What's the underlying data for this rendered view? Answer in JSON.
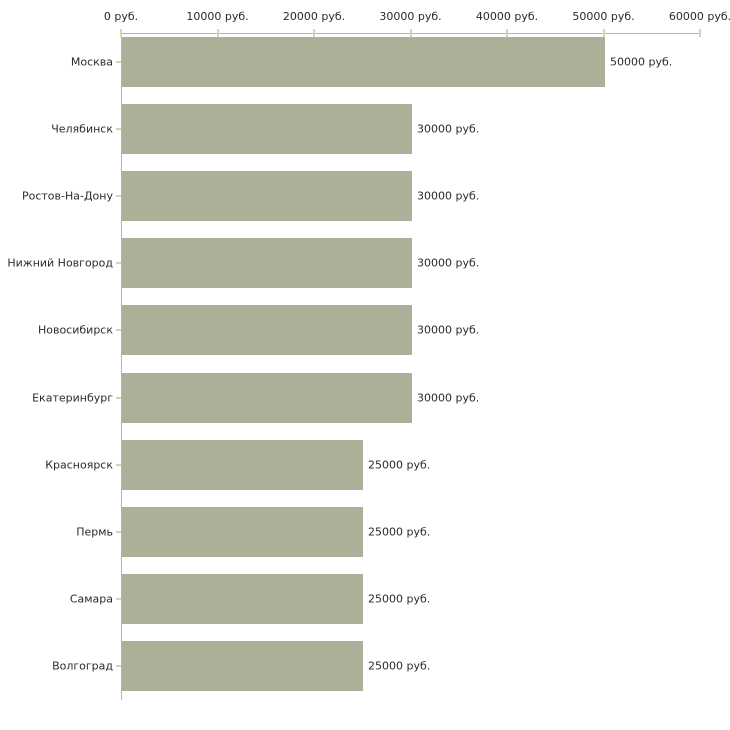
{
  "chart_data": {
    "type": "bar",
    "orientation": "horizontal",
    "title": "",
    "xlabel": "",
    "ylabel": "",
    "categories": [
      "Москва",
      "Челябинск",
      "Ростов-На-Дону",
      "Нижний Новгород",
      "Новосибирск",
      "Екатеринбург",
      "Красноярск",
      "Пермь",
      "Самара",
      "Волгоград"
    ],
    "values": [
      50000,
      30000,
      30000,
      30000,
      30000,
      30000,
      25000,
      25000,
      25000,
      25000
    ],
    "value_labels": [
      "50000 руб.",
      "30000 руб.",
      "30000 руб.",
      "30000 руб.",
      "30000 руб.",
      "30000 руб.",
      "25000 руб.",
      "25000 руб.",
      "25000 руб.",
      "25000 руб."
    ],
    "x_ticks": [
      0,
      10000,
      20000,
      30000,
      40000,
      50000,
      60000
    ],
    "x_tick_labels": [
      "0 руб.",
      "10000 руб.",
      "20000 руб.",
      "30000 руб.",
      "40000 руб.",
      "50000 руб.",
      "60000 руб."
    ],
    "xlim": [
      0,
      60000
    ],
    "unit": "руб.",
    "grid": false,
    "legend": false,
    "colors": {
      "bar": "#abb199",
      "axis": "#b3b3ab",
      "tick": "#d8d5ae",
      "text": "#2b2b2b",
      "background": "#ffffff"
    }
  }
}
